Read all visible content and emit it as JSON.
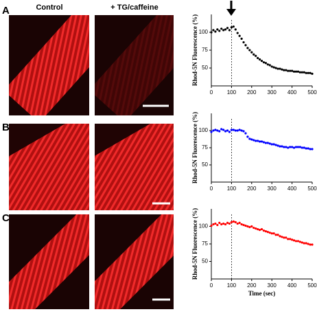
{
  "panels": [
    "A",
    "B",
    "C"
  ],
  "columns": [
    "Control",
    "+ TG/caffeine"
  ],
  "chart_data": [
    {
      "type": "scatter",
      "ylabel": "Rhod-5N Fluorescence (%)",
      "color": "#000000",
      "x": [
        0,
        10,
        20,
        30,
        40,
        50,
        60,
        70,
        80,
        90,
        100,
        110,
        120,
        130,
        140,
        150,
        160,
        170,
        180,
        190,
        200,
        210,
        220,
        230,
        240,
        250,
        260,
        270,
        280,
        290,
        300,
        310,
        320,
        330,
        340,
        350,
        360,
        370,
        380,
        390,
        400,
        410,
        420,
        430,
        440,
        450,
        460,
        470,
        480,
        490,
        500
      ],
      "values": [
        100,
        103,
        101,
        104,
        102,
        105,
        103,
        104,
        106,
        103,
        107,
        108,
        104,
        99,
        95,
        91,
        86,
        82,
        78,
        75,
        72,
        69,
        67,
        64,
        62,
        60,
        58,
        57,
        55,
        54,
        52,
        51,
        50,
        49,
        49,
        48,
        47,
        47,
        46,
        46,
        46,
        45,
        45,
        45,
        44,
        44,
        44,
        43,
        43,
        43,
        42
      ],
      "xlim": [
        0,
        500
      ],
      "xticks": [
        0,
        100,
        200,
        300,
        400,
        500
      ],
      "ylim": [
        25,
        125
      ],
      "yticks": [
        50,
        75,
        100
      ],
      "vline": 100
    },
    {
      "type": "scatter",
      "ylabel": "Rhod-5N Fluorescence (%)",
      "color": "#0000ff",
      "x": [
        0,
        10,
        20,
        30,
        40,
        50,
        60,
        70,
        80,
        90,
        100,
        110,
        120,
        130,
        140,
        150,
        160,
        170,
        180,
        190,
        200,
        210,
        220,
        230,
        240,
        250,
        260,
        270,
        280,
        290,
        300,
        310,
        320,
        330,
        340,
        350,
        360,
        370,
        380,
        390,
        400,
        410,
        420,
        430,
        440,
        450,
        460,
        470,
        480,
        490,
        500
      ],
      "values": [
        98,
        100,
        101,
        100,
        99,
        102,
        101,
        99,
        100,
        98,
        101,
        101,
        100,
        100,
        101,
        100,
        99,
        96,
        91,
        88,
        87,
        86,
        85,
        85,
        84,
        84,
        83,
        82,
        82,
        81,
        80,
        80,
        79,
        78,
        77,
        77,
        76,
        76,
        75,
        76,
        76,
        75,
        76,
        76,
        76,
        75,
        75,
        74,
        74,
        73,
        73
      ],
      "xlim": [
        0,
        500
      ],
      "xticks": [
        0,
        100,
        200,
        300,
        400,
        500
      ],
      "ylim": [
        25,
        125
      ],
      "yticks": [
        50,
        75,
        100
      ],
      "vline": 100
    },
    {
      "type": "scatter",
      "ylabel": "Rhod-5N Fluorescence (%)",
      "xlabel": "Time (sec)",
      "color": "#ff0000",
      "x": [
        0,
        10,
        20,
        30,
        40,
        50,
        60,
        70,
        80,
        90,
        100,
        110,
        120,
        130,
        140,
        150,
        160,
        170,
        180,
        190,
        200,
        210,
        220,
        230,
        240,
        250,
        260,
        270,
        280,
        290,
        300,
        310,
        320,
        330,
        340,
        350,
        360,
        370,
        380,
        390,
        400,
        410,
        420,
        430,
        440,
        450,
        460,
        470,
        480,
        490,
        500
      ],
      "values": [
        101,
        103,
        104,
        102,
        105,
        103,
        104,
        103,
        105,
        104,
        106,
        107,
        106,
        104,
        105,
        103,
        102,
        101,
        100,
        99,
        100,
        98,
        97,
        96,
        95,
        96,
        94,
        93,
        92,
        91,
        90,
        90,
        88,
        88,
        86,
        85,
        84,
        84,
        82,
        82,
        81,
        80,
        79,
        79,
        78,
        77,
        76,
        76,
        75,
        74,
        74
      ],
      "xlim": [
        0,
        500
      ],
      "xticks": [
        0,
        100,
        200,
        300,
        400,
        500
      ],
      "ylim": [
        25,
        125
      ],
      "yticks": [
        50,
        75,
        100
      ],
      "vline": 100
    }
  ]
}
